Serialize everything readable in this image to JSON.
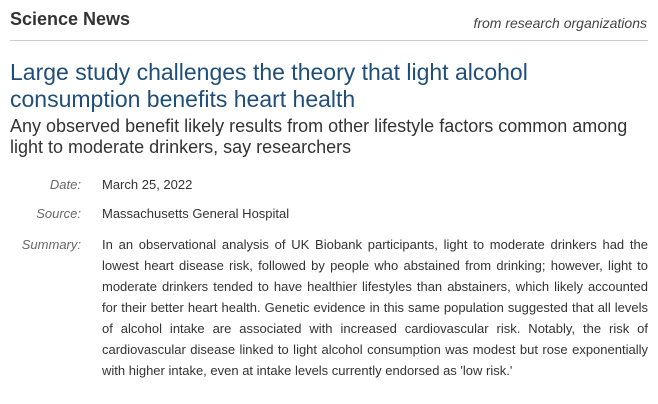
{
  "header": {
    "site_title": "Science News",
    "tagline": "from research organizations"
  },
  "article": {
    "headline": "Large study challenges the theory that light alcohol consumption benefits heart health",
    "subheadline": "Any observed benefit likely results from other lifestyle factors common among light to moderate drinkers, say researchers",
    "meta": {
      "date_label": "Date:",
      "date_value": "March 25, 2022",
      "source_label": "Source:",
      "source_value": "Massachusetts General Hospital",
      "summary_label": "Summary:",
      "summary_value": "In an observational analysis of UK Biobank participants, light to moderate drinkers had the lowest heart disease risk, followed by people who abstained from drinking; however, light to moderate drinkers tended to have healthier lifestyles than abstainers, which likely accounted for their better heart health. Genetic evidence in this same population suggested that all levels of alcohol intake are associated with increased cardiovascular risk. Notably, the risk of cardiovascular disease linked to light alcohol consumption was modest but rose exponentially with higher intake, even at intake levels currently endorsed as 'low risk.'"
    }
  },
  "colors": {
    "headline": "#1f4e79",
    "label": "#666666",
    "text": "#333333"
  }
}
